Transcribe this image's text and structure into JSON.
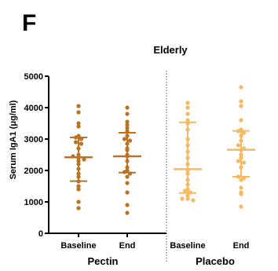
{
  "chart_data": {
    "type": "scatter",
    "panel_label": "F",
    "title": "Elderly",
    "ylabel": "Serum IgA1 (μg/ml)",
    "xlabel": "",
    "ylim": [
      0,
      5000
    ],
    "yticks": [
      0,
      1000,
      2000,
      3000,
      4000,
      5000
    ],
    "groups": [
      {
        "name": "Pectin",
        "color": "#b87324"
      },
      {
        "name": "Placebo",
        "color": "#f5b962"
      }
    ],
    "series": [
      {
        "group": "Pectin",
        "category": "Baseline",
        "color": "#b87324",
        "mean": 2420,
        "sd_low": 1660,
        "sd_high": 3050,
        "values": [
          4050,
          3850,
          3500,
          3400,
          3100,
          3050,
          3000,
          2900,
          2850,
          2700,
          2500,
          2450,
          2400,
          2350,
          2300,
          2200,
          2050,
          1900,
          1800,
          1650,
          1500,
          1400,
          1000,
          800
        ]
      },
      {
        "group": "Pectin",
        "category": "End",
        "color": "#b87324",
        "mean": 2450,
        "sd_low": 1930,
        "sd_high": 3200,
        "values": [
          4000,
          3800,
          3550,
          3450,
          3350,
          3250,
          3100,
          3000,
          2950,
          2850,
          2700,
          2650,
          2500,
          2450,
          2300,
          2100,
          2000,
          1950,
          1900,
          1800,
          1600,
          1300,
          900,
          650
        ]
      },
      {
        "group": "Placebo",
        "category": "Baseline",
        "color": "#f5b962",
        "mean": 2040,
        "sd_low": 1280,
        "sd_high": 3530,
        "values": [
          4150,
          4000,
          3800,
          3600,
          3500,
          3300,
          3000,
          2800,
          2600,
          2400,
          2200,
          2000,
          1900,
          1700,
          1550,
          1400,
          1350,
          1300,
          1200,
          1100,
          1100,
          1050
        ]
      },
      {
        "group": "Placebo",
        "category": "End",
        "color": "#f5b962",
        "mean": 2660,
        "sd_low": 1800,
        "sd_high": 3260,
        "values": [
          4650,
          4200,
          4050,
          3600,
          3300,
          3250,
          3200,
          3100,
          2950,
          2800,
          2700,
          2650,
          2500,
          2400,
          2300,
          2250,
          2100,
          1800,
          1750,
          1700,
          1450,
          1300,
          1250,
          850
        ]
      }
    ],
    "divider": "dotted-between-groups",
    "grid": false,
    "legend": "none"
  }
}
